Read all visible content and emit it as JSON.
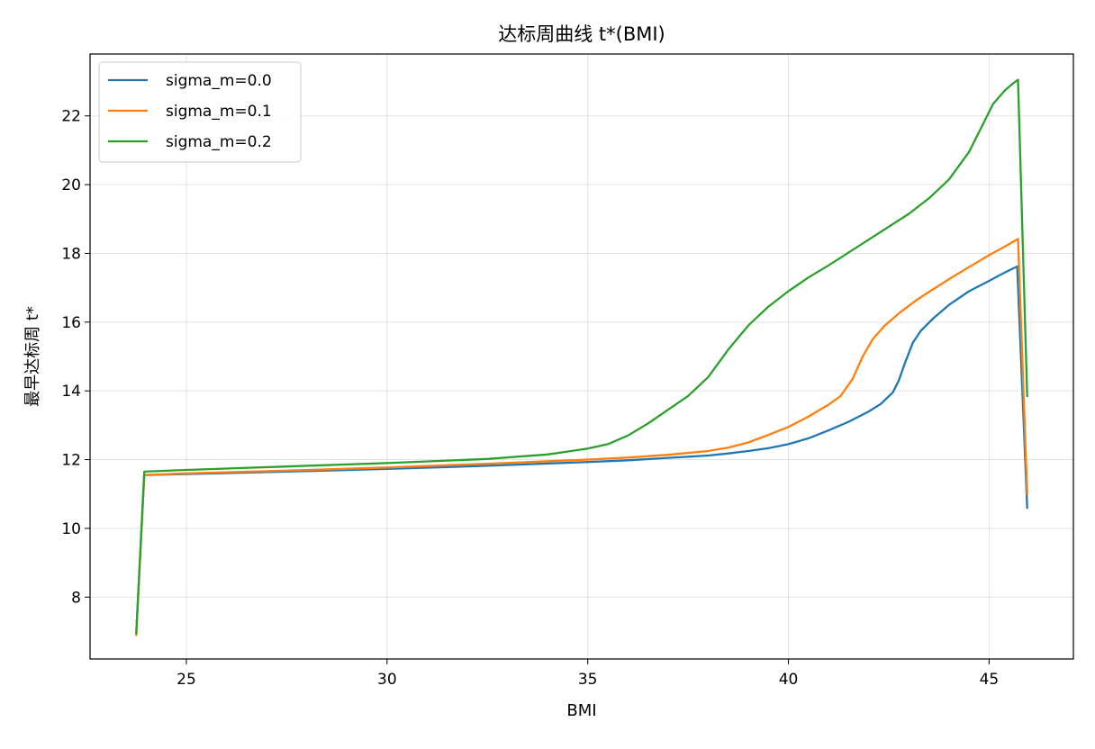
{
  "chart_data": {
    "type": "line",
    "title": "达标周曲线  t*(BMI)",
    "xlabel": "BMI",
    "ylabel": "最早达标周 t*",
    "xlim": [
      22.6,
      47.1
    ],
    "ylim": [
      6.2,
      23.8
    ],
    "xticks": [
      25,
      30,
      35,
      40,
      45
    ],
    "yticks": [
      8,
      10,
      12,
      14,
      16,
      18,
      20,
      22
    ],
    "grid": true,
    "legend_position": "top-left",
    "series": [
      {
        "name": "sigma_m=0.0",
        "color": "#1f77b4",
        "x": [
          23.75,
          23.95,
          25,
          27.5,
          30,
          32.5,
          35,
          36,
          37,
          38,
          38.5,
          39,
          39.5,
          40,
          40.5,
          41,
          41.5,
          42,
          42.3,
          42.6,
          42.75,
          42.9,
          43.1,
          43.3,
          43.6,
          44,
          44.5,
          45,
          45.4,
          45.7,
          45.95
        ],
        "y": [
          6.95,
          11.55,
          11.58,
          11.65,
          11.73,
          11.82,
          11.93,
          11.98,
          12.05,
          12.12,
          12.18,
          12.25,
          12.33,
          12.45,
          12.62,
          12.85,
          13.1,
          13.4,
          13.62,
          13.95,
          14.3,
          14.8,
          15.4,
          15.75,
          16.1,
          16.5,
          16.9,
          17.2,
          17.45,
          17.62,
          10.6
        ]
      },
      {
        "name": "sigma_m=0.1",
        "color": "#ff7f0e",
        "x": [
          23.75,
          23.95,
          25,
          27.5,
          30,
          32.5,
          35,
          36,
          37,
          38,
          38.5,
          39,
          39.5,
          40,
          40.5,
          41,
          41.3,
          41.6,
          41.85,
          42.1,
          42.4,
          42.8,
          43.2,
          43.6,
          44,
          44.5,
          45,
          45.4,
          45.72,
          45.95
        ],
        "y": [
          6.9,
          11.55,
          11.6,
          11.68,
          11.77,
          11.88,
          12.0,
          12.06,
          12.14,
          12.25,
          12.35,
          12.5,
          12.72,
          12.95,
          13.25,
          13.6,
          13.85,
          14.35,
          15.0,
          15.5,
          15.9,
          16.3,
          16.65,
          16.95,
          17.25,
          17.6,
          17.95,
          18.2,
          18.42,
          11.0
        ]
      },
      {
        "name": "sigma_m=0.2",
        "color": "#2ca02c",
        "x": [
          23.75,
          23.95,
          25,
          27.5,
          30,
          32.5,
          34,
          35,
          35.5,
          36,
          36.5,
          37,
          37.5,
          38,
          38.5,
          39,
          39.5,
          40,
          40.5,
          41,
          42,
          43,
          43.5,
          44,
          44.5,
          44.8,
          45.1,
          45.4,
          45.6,
          45.72,
          45.95
        ],
        "y": [
          6.95,
          11.65,
          11.7,
          11.8,
          11.9,
          12.02,
          12.15,
          12.32,
          12.45,
          12.7,
          13.05,
          13.45,
          13.85,
          14.4,
          15.2,
          15.9,
          16.45,
          16.9,
          17.3,
          17.65,
          18.4,
          19.15,
          19.6,
          20.15,
          20.95,
          21.65,
          22.35,
          22.75,
          22.95,
          23.05,
          13.85
        ]
      }
    ]
  }
}
